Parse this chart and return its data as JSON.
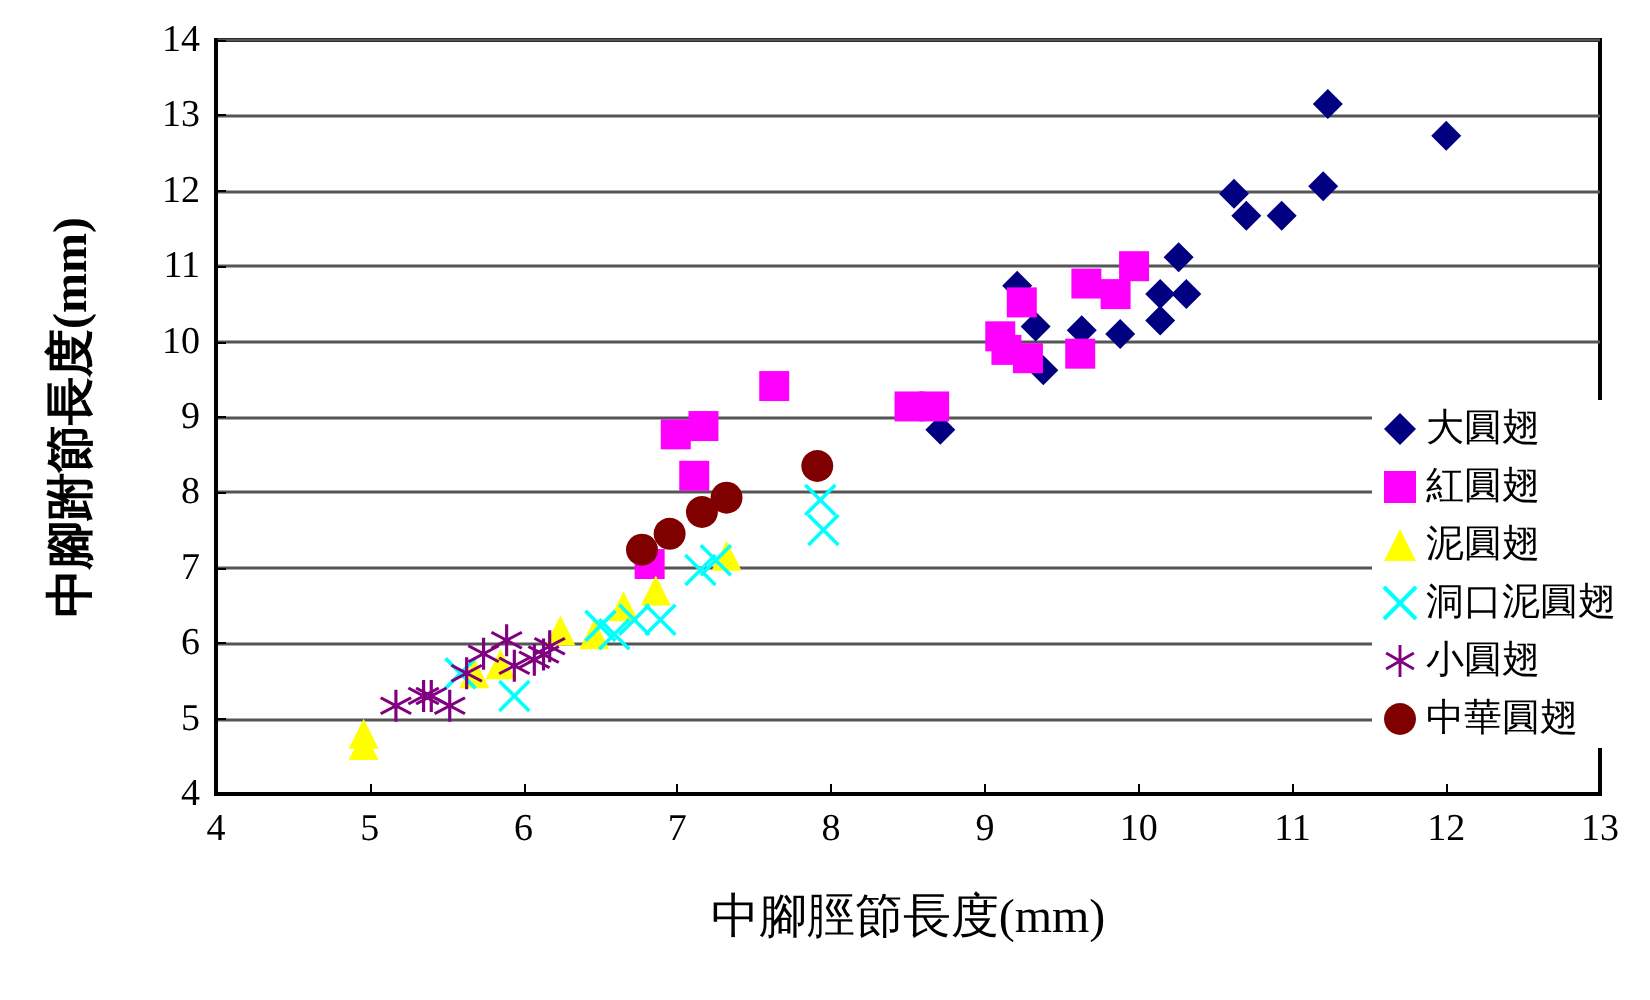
{
  "chart_data": {
    "type": "scatter",
    "xlabel": "中腳脛節長度(mm)",
    "ylabel": "中腳跗節長度(mm)",
    "xlim": [
      4,
      13
    ],
    "xticks": [
      4,
      5,
      6,
      7,
      8,
      9,
      10,
      11,
      12,
      13
    ],
    "ylim": [
      4,
      14
    ],
    "yticks": [
      4,
      5,
      6,
      7,
      8,
      9,
      10,
      11,
      12,
      13,
      14
    ],
    "grid": "y",
    "legend": "right",
    "series": [
      {
        "name": "大圓翅",
        "color": "#000080",
        "marker": "diamond",
        "x": [
          11.23,
          12.0,
          11.2,
          10.62,
          10.7,
          10.93,
          10.26,
          10.14,
          10.31,
          10.14,
          9.88,
          9.63,
          9.33,
          9.21,
          9.38,
          8.71
        ],
        "values": [
          13.15,
          12.73,
          12.06,
          11.96,
          11.67,
          11.67,
          11.12,
          10.63,
          10.63,
          10.28,
          10.1,
          10.15,
          10.2,
          10.74,
          9.62,
          8.83
        ]
      },
      {
        "name": "紅圓翅",
        "color": "#ff00ff",
        "marker": "square",
        "x": [
          7.63,
          6.99,
          7.17,
          7.11,
          6.82,
          8.51,
          8.67,
          9.24,
          9.1,
          9.14,
          9.28,
          9.62,
          9.66,
          9.97,
          9.85
        ],
        "values": [
          9.41,
          8.77,
          8.88,
          8.22,
          7.05,
          9.14,
          9.14,
          10.52,
          10.07,
          9.89,
          9.78,
          9.84,
          10.77,
          11.0,
          10.63
        ]
      },
      {
        "name": "泥圓翅",
        "color": "#ffff00",
        "marker": "triangle",
        "x": [
          4.96,
          4.96,
          5.68,
          5.85,
          6.24,
          6.46,
          6.65,
          6.86,
          7.32
        ],
        "values": [
          4.65,
          4.8,
          5.6,
          5.72,
          6.17,
          6.12,
          6.49,
          6.7,
          7.16
        ]
      },
      {
        "name": "洞口泥圓翅",
        "color": "#00ffff",
        "marker": "cross",
        "x": [
          5.94,
          5.59,
          6.5,
          6.59,
          6.89,
          6.72,
          7.15,
          7.25,
          7.93,
          7.95
        ],
        "values": [
          5.3,
          5.6,
          6.23,
          6.12,
          6.31,
          6.31,
          6.97,
          7.1,
          7.9,
          7.5
        ]
      },
      {
        "name": "小圓翅",
        "color": "#800080",
        "marker": "star",
        "x": [
          5.17,
          5.35,
          5.4,
          5.52,
          5.63,
          5.74,
          5.89,
          5.94,
          6.07,
          6.17,
          6.13
        ],
        "values": [
          5.17,
          5.3,
          5.3,
          5.17,
          5.6,
          5.86,
          6.04,
          5.7,
          5.78,
          5.96,
          5.85
        ]
      },
      {
        "name": "中華圓翅",
        "color": "#800000",
        "marker": "circle",
        "x": [
          6.77,
          6.95,
          7.16,
          7.32,
          7.91
        ],
        "values": [
          7.24,
          7.45,
          7.74,
          7.93,
          8.35
        ]
      }
    ]
  }
}
